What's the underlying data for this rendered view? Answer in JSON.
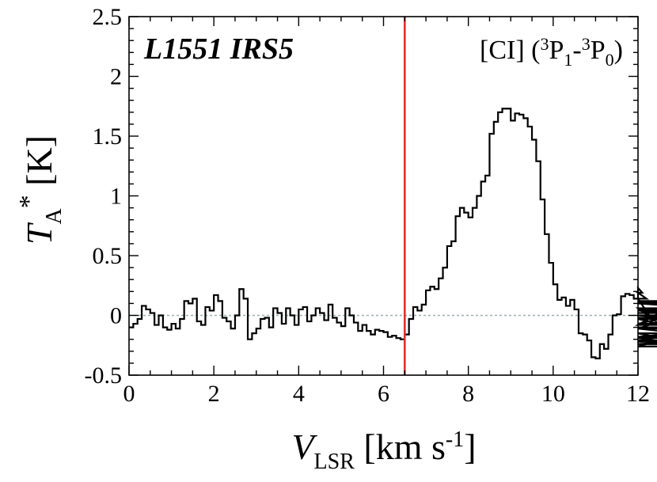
{
  "chart_data": {
    "type": "line",
    "source_label": "L1551 IRS5",
    "line_label": {
      "prefix": "[CI] (",
      "sup1": "3",
      "p1": "P",
      "sub1": "1",
      "dash": "-",
      "sup2": "3",
      "p2": "P",
      "sub2": "0",
      "suffix": ")"
    },
    "xlabel": {
      "main": "V",
      "sub": "LSR",
      "unit_pre": " [km s",
      "unit_sup": "-1",
      "unit_post": "]"
    },
    "ylabel": {
      "main": "T",
      "sub": "A",
      "sup": "*",
      "unit": " [K]"
    },
    "xlim": [
      0,
      12
    ],
    "ylim": [
      -0.5,
      2.5
    ],
    "xticks": [
      0,
      2,
      4,
      6,
      8,
      10,
      12
    ],
    "xtick_labels": [
      "0",
      "2",
      "4",
      "6",
      "8",
      "10",
      "12"
    ],
    "yticks": [
      -0.5,
      0,
      0.5,
      1,
      1.5,
      2,
      2.5
    ],
    "ytick_labels": [
      "-0.5",
      "0",
      "0.5",
      "1",
      "1.5",
      "2",
      "2.5"
    ],
    "zero_line": 0,
    "zero_line_color": "#9aaeb0",
    "systemic_velocity": 6.5,
    "systemic_line_color": "#e03030",
    "step_color": "#000000",
    "x_step": 0.1,
    "x_start": 0.0,
    "values": [
      -0.1,
      -0.07,
      -0.03,
      0.08,
      0.05,
      0.02,
      -0.08,
      0.0,
      -0.1,
      -0.12,
      -0.07,
      -0.11,
      -0.03,
      0.12,
      0.1,
      0.14,
      -0.05,
      -0.08,
      0.07,
      0.04,
      0.17,
      0.12,
      -0.02,
      -0.05,
      -0.11,
      0.0,
      0.22,
      0.14,
      -0.2,
      -0.15,
      -0.11,
      -0.03,
      -0.02,
      -0.1,
      0.06,
      0.02,
      -0.07,
      0.06,
      0.0,
      -0.08,
      0.05,
      0.07,
      -0.05,
      0.0,
      0.06,
      0.02,
      -0.04,
      0.09,
      -0.02,
      -0.06,
      -0.09,
      0.06,
      0.0,
      -0.06,
      -0.13,
      -0.08,
      -0.13,
      -0.16,
      -0.12,
      -0.13,
      -0.14,
      -0.18,
      -0.17,
      -0.19,
      -0.2,
      -0.16,
      -0.03,
      0.07,
      0.04,
      0.09,
      0.21,
      0.24,
      0.22,
      0.31,
      0.4,
      0.58,
      0.62,
      0.83,
      0.9,
      0.86,
      0.82,
      0.9,
      1.0,
      1.12,
      1.17,
      1.52,
      1.62,
      1.7,
      1.73,
      1.73,
      1.63,
      1.69,
      1.68,
      1.65,
      1.58,
      1.47,
      1.29,
      0.97,
      0.68,
      0.44,
      0.26,
      0.13,
      0.15,
      0.08,
      0.13,
      0.05,
      -0.15,
      -0.16,
      -0.21,
      -0.35,
      -0.36,
      -0.24,
      -0.28,
      -0.16,
      0.0,
      0.01,
      0.16,
      0.18,
      0.17,
      0.14,
      0.23,
      0.19,
      0.14,
      -0.02,
      -0.07,
      -0.03,
      -0.08,
      0.06,
      -0.15,
      -0.21,
      -0.15,
      -0.24,
      -0.21,
      -0.22,
      -0.19,
      -0.26,
      -0.1,
      -0.11,
      -0.18,
      -0.11,
      0.12,
      0.05,
      -0.07,
      0.11,
      0.1,
      0.04,
      -0.03,
      0.04,
      0.05,
      0.0,
      -0.08,
      0.02,
      0.05,
      0.0
    ]
  }
}
